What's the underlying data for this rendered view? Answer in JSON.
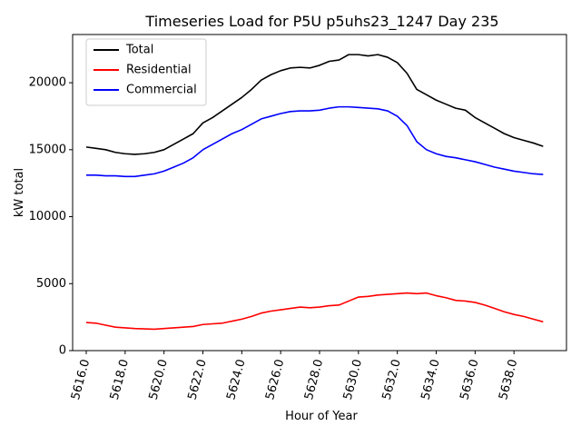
{
  "chart_data": {
    "type": "line",
    "title": "Timeseries Load for P5U p5uhs23_1247  Day 235",
    "xlabel": "Hour of Year",
    "ylabel": "kW total",
    "xlim": [
      5615.3,
      5640.7
    ],
    "ylim": [
      0,
      23600
    ],
    "x_ticks": [
      5616,
      5618,
      5620,
      5622,
      5624,
      5626,
      5628,
      5630,
      5632,
      5634,
      5636,
      5638
    ],
    "x_tick_labels": [
      "5616.0",
      "5618.0",
      "5620.0",
      "5622.0",
      "5624.0",
      "5626.0",
      "5628.0",
      "5630.0",
      "5632.0",
      "5634.0",
      "5636.0",
      "5638.0"
    ],
    "y_ticks": [
      0,
      5000,
      10000,
      15000,
      20000
    ],
    "y_tick_labels": [
      "0",
      "5000",
      "10000",
      "15000",
      "20000"
    ],
    "legend_position": "top-left",
    "grid": false,
    "x": [
      5616.0,
      5616.5,
      5617.0,
      5617.5,
      5618.0,
      5618.5,
      5619.0,
      5619.5,
      5620.0,
      5620.5,
      5621.0,
      5621.5,
      5622.0,
      5622.5,
      5623.0,
      5623.5,
      5624.0,
      5624.5,
      5625.0,
      5625.5,
      5626.0,
      5626.5,
      5627.0,
      5627.5,
      5628.0,
      5628.5,
      5629.0,
      5629.5,
      5630.0,
      5630.5,
      5631.0,
      5631.5,
      5632.0,
      5632.5,
      5633.0,
      5633.5,
      5634.0,
      5634.5,
      5635.0,
      5635.5,
      5636.0,
      5636.5,
      5637.0,
      5637.5,
      5638.0,
      5638.5,
      5639.0,
      5639.5
    ],
    "series": [
      {
        "name": "Total",
        "color": "#000000",
        "values": [
          15200,
          15100,
          15000,
          14800,
          14700,
          14650,
          14700,
          14800,
          15000,
          15400,
          15800,
          16200,
          17000,
          17400,
          17900,
          18400,
          18900,
          19500,
          20200,
          20600,
          20900,
          21100,
          21150,
          21100,
          21300,
          21600,
          21700,
          22100,
          22100,
          22000,
          22100,
          21900,
          21500,
          20700,
          19500,
          19100,
          18700,
          18400,
          18100,
          17950,
          17400,
          17000,
          16600,
          16200,
          15900,
          15700,
          15500,
          15250
        ]
      },
      {
        "name": "Residential",
        "color": "#ff0000",
        "values": [
          2100,
          2050,
          1900,
          1750,
          1700,
          1650,
          1620,
          1600,
          1650,
          1700,
          1750,
          1800,
          1950,
          2000,
          2050,
          2200,
          2350,
          2550,
          2800,
          2950,
          3050,
          3150,
          3250,
          3200,
          3250,
          3350,
          3400,
          3700,
          4000,
          4050,
          4150,
          4200,
          4250,
          4300,
          4250,
          4300,
          4100,
          3950,
          3750,
          3700,
          3600,
          3400,
          3150,
          2900,
          2700,
          2550,
          2350,
          2150
        ]
      },
      {
        "name": "Commercial",
        "color": "#0000ff",
        "values": [
          13100,
          13100,
          13050,
          13050,
          13000,
          13000,
          13100,
          13200,
          13400,
          13700,
          14000,
          14400,
          15000,
          15400,
          15800,
          16200,
          16500,
          16900,
          17300,
          17500,
          17700,
          17850,
          17900,
          17900,
          17950,
          18100,
          18200,
          18200,
          18150,
          18100,
          18050,
          17900,
          17500,
          16800,
          15600,
          15000,
          14700,
          14500,
          14400,
          14250,
          14100,
          13900,
          13700,
          13550,
          13400,
          13300,
          13200,
          13150
        ]
      }
    ]
  }
}
